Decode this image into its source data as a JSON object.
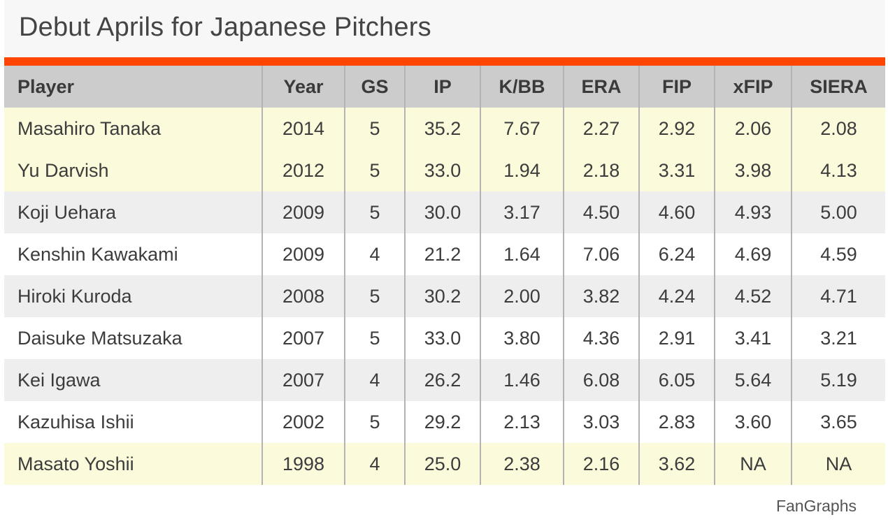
{
  "chart_data": {
    "type": "table",
    "title": "Debut Aprils for Japanese Pitchers",
    "columns": [
      "Player",
      "Year",
      "GS",
      "IP",
      "K/BB",
      "ERA",
      "FIP",
      "xFIP",
      "SIERA"
    ],
    "rows": [
      [
        "Masahiro Tanaka",
        "2014",
        "5",
        "35.2",
        "7.67",
        "2.27",
        "2.92",
        "2.06",
        "2.08"
      ],
      [
        "Yu Darvish",
        "2012",
        "5",
        "33.0",
        "1.94",
        "2.18",
        "3.31",
        "3.98",
        "4.13"
      ],
      [
        "Koji Uehara",
        "2009",
        "5",
        "30.0",
        "3.17",
        "4.50",
        "4.60",
        "4.93",
        "5.00"
      ],
      [
        "Kenshin Kawakami",
        "2009",
        "4",
        "21.2",
        "1.64",
        "7.06",
        "6.24",
        "4.69",
        "4.59"
      ],
      [
        "Hiroki Kuroda",
        "2008",
        "5",
        "30.2",
        "2.00",
        "3.82",
        "4.24",
        "4.52",
        "4.71"
      ],
      [
        "Daisuke Matsuzaka",
        "2007",
        "5",
        "33.0",
        "3.80",
        "4.36",
        "2.91",
        "3.41",
        "3.21"
      ],
      [
        "Kei Igawa",
        "2007",
        "4",
        "26.2",
        "1.46",
        "6.08",
        "6.05",
        "5.64",
        "5.19"
      ],
      [
        "Kazuhisa Ishii",
        "2002",
        "5",
        "29.2",
        "2.13",
        "3.03",
        "2.83",
        "3.60",
        "3.65"
      ],
      [
        "Masato Yoshii",
        "1998",
        "4",
        "25.0",
        "2.38",
        "2.16",
        "3.62",
        "NA",
        "NA"
      ]
    ],
    "highlighted_rows": [
      0,
      1,
      8
    ],
    "source": "FanGraphs"
  },
  "colors": {
    "accent": "#ff4500",
    "header_bg": "#cccccc",
    "highlight_bg": "#fbfbdc",
    "stripe_bg": "#eeeeee",
    "plain_bg": "#ffffff"
  }
}
